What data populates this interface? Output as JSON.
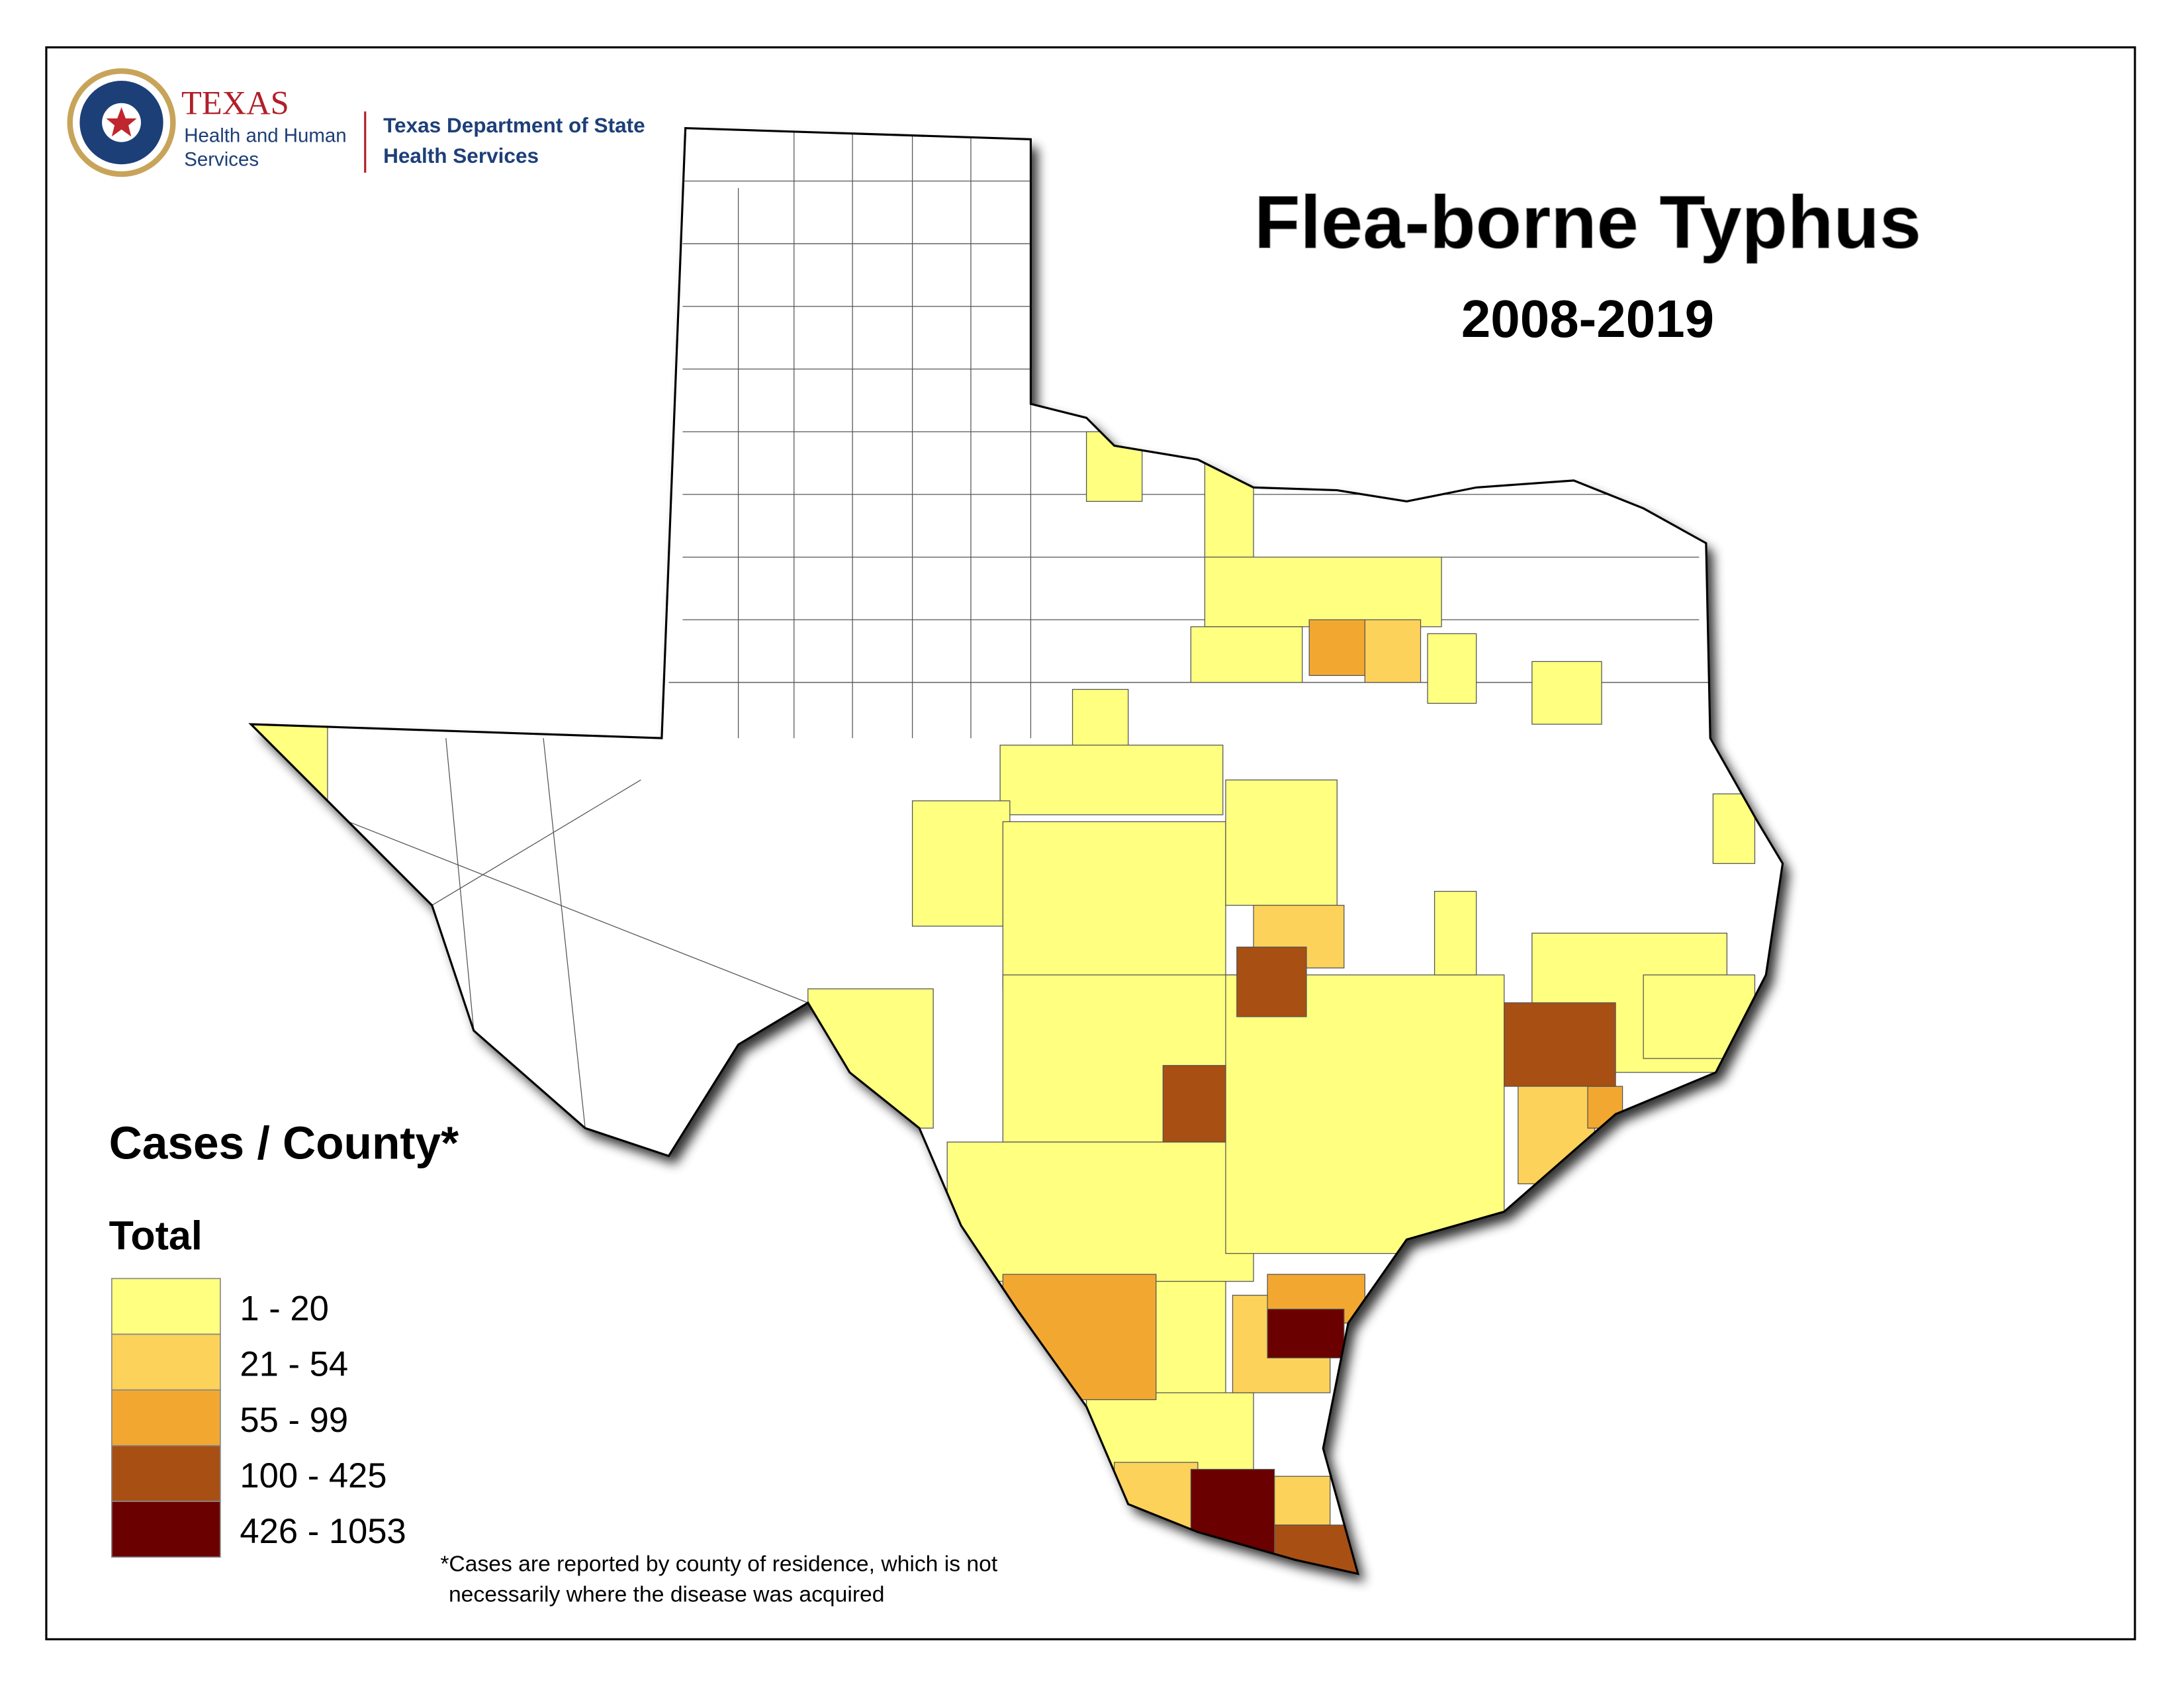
{
  "header": {
    "logo_name": "TEXAS",
    "logo_sub": [
      "Health and Human",
      "Services"
    ],
    "department": [
      "Texas Department of State",
      "Health Services"
    ]
  },
  "title": "Flea-borne Typhus",
  "subtitle": "2008-2019",
  "legend": {
    "title": "Cases / County*",
    "subtitle": "Total",
    "items": [
      {
        "label": "1 - 20",
        "color": "#ffff80"
      },
      {
        "label": "21 - 54",
        "color": "#fcd25a"
      },
      {
        "label": "55 - 99",
        "color": "#f2a830"
      },
      {
        "label": "100 - 425",
        "color": "#a84f14"
      },
      {
        "label": "426 - 1053",
        "color": "#6b0000"
      }
    ]
  },
  "footnote": [
    "*Cases are reported by county of residence, which is not",
    "necessarily where the disease was acquired"
  ]
}
